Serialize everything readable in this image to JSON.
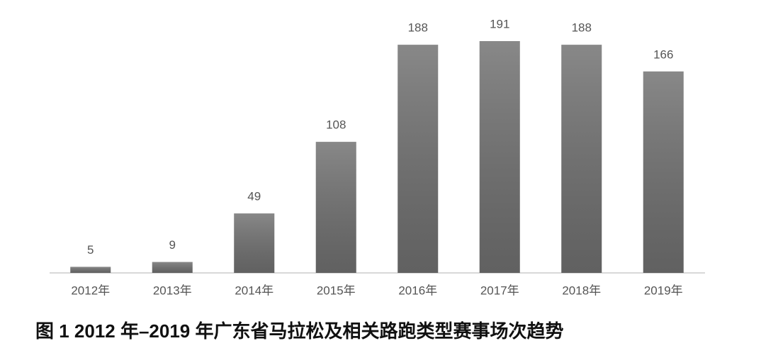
{
  "chart_data": {
    "type": "bar",
    "title": "图 1  2012 年–2019 年广东省马拉松及相关路跑类型赛事场次趋势",
    "categories": [
      "2012年",
      "2013年",
      "2014年",
      "2015年",
      "2016年",
      "2017年",
      "2018年",
      "2019年"
    ],
    "values": [
      5,
      9,
      49,
      108,
      188,
      191,
      188,
      166
    ],
    "color": "#6e6e6e",
    "data_labels": true
  }
}
